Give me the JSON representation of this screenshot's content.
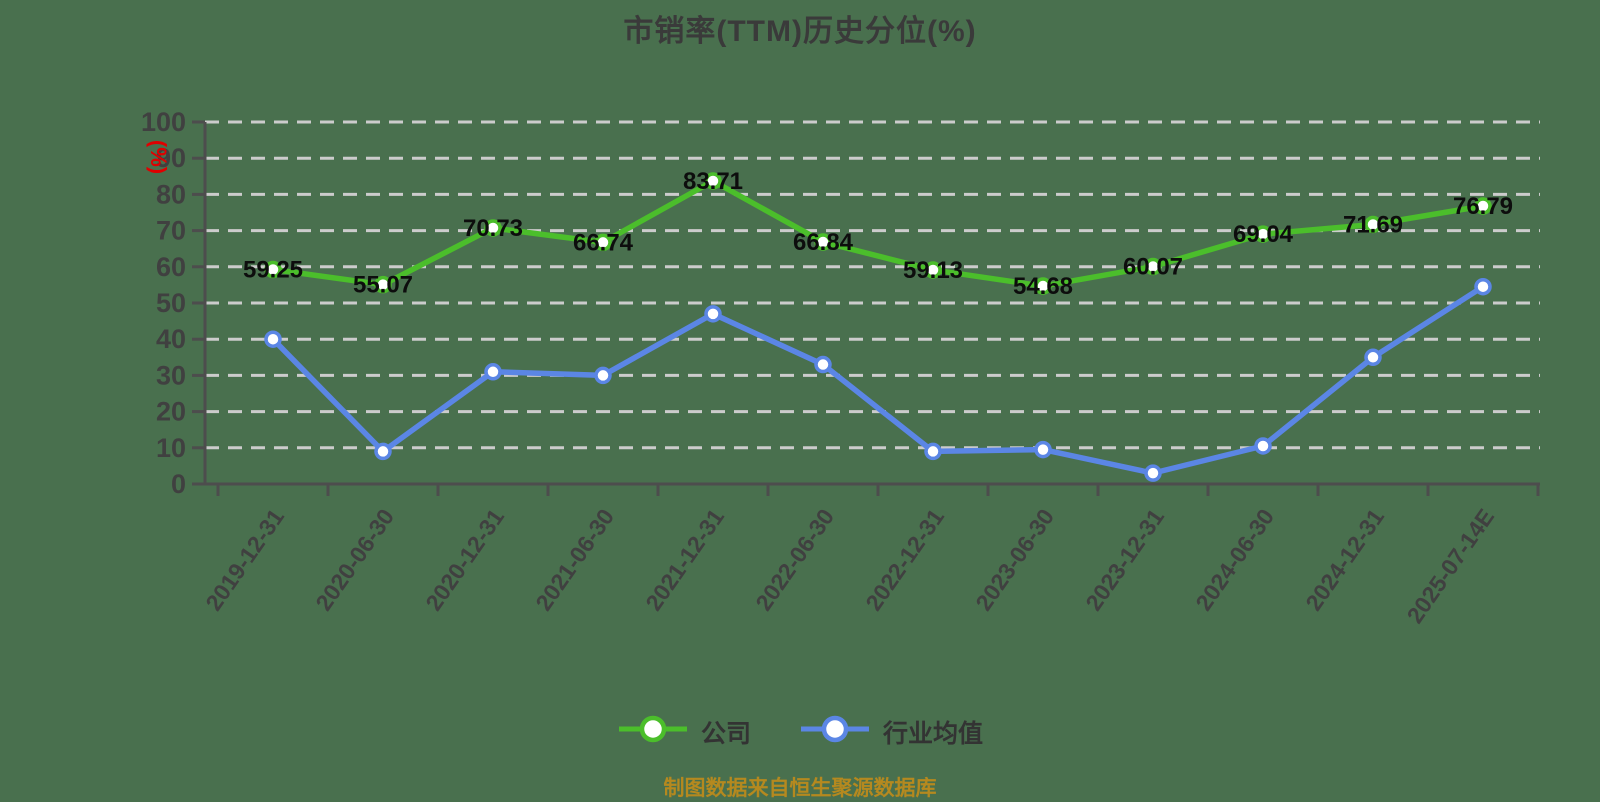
{
  "title": "市销率(TTM)历史分位(%)",
  "caption": "制图数据来自恒生聚源数据库",
  "colors": {
    "background": "#49704E",
    "company_series": "#4BBE2B",
    "industry_series": "#5B86E5",
    "grid": "#CCCCCC",
    "axis": "#4D4D4D",
    "tick_label": "#404040",
    "value_label": "#0D0D0D",
    "title_text": "#3A3A3A",
    "y_axis_name": "#E00000",
    "legend_text": "#333333",
    "caption_text": "#B5891F",
    "marker_fill": "#FFFFFF"
  },
  "chart_data": {
    "type": "line",
    "title": "市销率(TTM)历史分位(%)",
    "xlabel": "",
    "ylabel": "(%)",
    "ylim": [
      0,
      100
    ],
    "y_ticks": [
      0,
      10,
      20,
      30,
      40,
      50,
      60,
      70,
      80,
      90,
      100
    ],
    "grid": "dashed horizontal",
    "legend_position": "bottom",
    "categories": [
      "2019-12-31",
      "2020-06-30",
      "2020-12-31",
      "2021-06-30",
      "2021-12-31",
      "2022-06-30",
      "2022-12-31",
      "2023-06-30",
      "2023-12-31",
      "2024-06-30",
      "2024-12-31",
      "2025-07-14E"
    ],
    "series": [
      {
        "name": "公司",
        "color": "#4BBE2B",
        "values": [
          59.25,
          55.07,
          70.73,
          66.74,
          83.71,
          66.84,
          59.13,
          54.68,
          60.07,
          69.04,
          71.69,
          76.79
        ],
        "labels": [
          "59.25",
          "55.07",
          "70.73",
          "66.74",
          "83.71",
          "66.84",
          "59.13",
          "54.68",
          "60.07",
          "69.04",
          "71.69",
          "76.79"
        ]
      },
      {
        "name": "行业均值",
        "color": "#5B86E5",
        "values": [
          40,
          9,
          31,
          30,
          47,
          33,
          9,
          9.5,
          3,
          10.5,
          35,
          54.5
        ]
      }
    ]
  }
}
